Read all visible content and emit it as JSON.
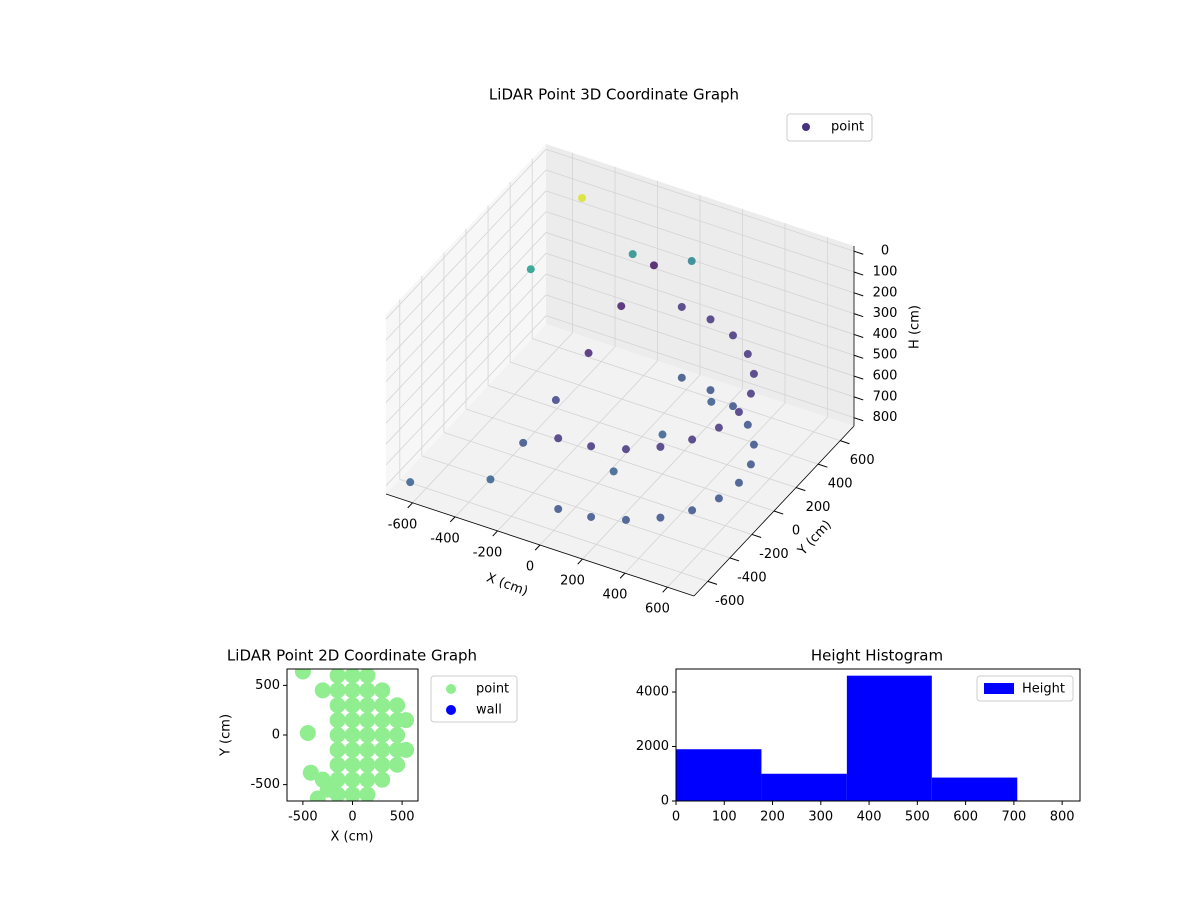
{
  "chart_data": [
    {
      "type": "scatter3d",
      "title": "LiDAR Point 3D Coordinate Graph",
      "xlabel": "X (cm)",
      "ylabel": "Y (cm)",
      "zlabel": "H (cm)",
      "xlim": [
        -725,
        725
      ],
      "ylim": [
        -725,
        725
      ],
      "zlim": [
        -25,
        840
      ],
      "zinvert": true,
      "xticks": [
        -600,
        -400,
        -200,
        0,
        200,
        400,
        600
      ],
      "yticks": [
        -600,
        -400,
        -200,
        0,
        200,
        400,
        600
      ],
      "zticks": [
        0,
        100,
        200,
        300,
        400,
        500,
        600,
        700,
        800
      ],
      "cmap": "viridis",
      "legend": "upper right",
      "grid": true,
      "series": [
        {
          "name": "point",
          "color": "#46327e",
          "x": [
            0,
            145,
            280,
            396,
            485,
            541,
            560,
            541,
            485,
            396,
            280,
            145,
            0,
            0,
            145,
            280,
            396,
            485,
            541,
            560,
            541,
            485,
            396,
            280,
            145,
            0,
            -100,
            -150,
            -200,
            -250,
            -300,
            -350,
            200,
            100,
            300,
            -650,
            -480,
            -550,
            -200,
            0
          ],
          "y": [
            -560,
            -541,
            -485,
            -396,
            -280,
            -145,
            0,
            145,
            280,
            396,
            485,
            541,
            560,
            -560,
            -541,
            -485,
            -396,
            -280,
            -145,
            0,
            145,
            280,
            396,
            485,
            541,
            560,
            500,
            300,
            100,
            -100,
            -300,
            -500,
            0,
            -250,
            250,
            -650,
            580,
            250,
            500,
            650
          ],
          "z": [
            420,
            420,
            420,
            420,
            420,
            420,
            420,
            420,
            420,
            420,
            420,
            420,
            420,
            760,
            760,
            760,
            760,
            760,
            760,
            760,
            760,
            760,
            760,
            760,
            760,
            760,
            220,
            320,
            450,
            580,
            690,
            770,
            650,
            720,
            600,
            800,
            70,
            250,
            200,
            250
          ],
          "c": [
            0.15,
            0.15,
            0.15,
            0.15,
            0.15,
            0.15,
            0.15,
            0.15,
            0.15,
            0.15,
            0.15,
            0.15,
            0.15,
            0.25,
            0.25,
            0.25,
            0.25,
            0.25,
            0.25,
            0.25,
            0.25,
            0.25,
            0.25,
            0.25,
            0.25,
            0.25,
            0.05,
            0.08,
            0.1,
            0.2,
            0.25,
            0.3,
            0.3,
            0.3,
            0.28,
            0.3,
            0.95,
            0.55,
            0.5,
            0.45
          ]
        }
      ]
    },
    {
      "type": "scatter",
      "title": "LiDAR Point 2D Coordinate Graph",
      "xlabel": "X (cm)",
      "ylabel": "Y (cm)",
      "xlim": [
        -660,
        660
      ],
      "ylim": [
        -665,
        665
      ],
      "xticks": [
        -500,
        0,
        500
      ],
      "yticks": [
        -500,
        0,
        500
      ],
      "legend": "outside right",
      "series": [
        {
          "name": "point",
          "color": "#90ee90",
          "x": [
            -150,
            -150,
            -150,
            -150,
            -150,
            -150,
            -150,
            -150,
            -150,
            0,
            0,
            0,
            0,
            0,
            0,
            0,
            0,
            0,
            150,
            150,
            150,
            150,
            150,
            150,
            150,
            150,
            150,
            300,
            300,
            300,
            300,
            300,
            300,
            300,
            450,
            450,
            450,
            450,
            450,
            540,
            540,
            -300,
            -300,
            -420,
            -450,
            -500,
            -350,
            -250
          ],
          "y": [
            -600,
            -450,
            -300,
            -150,
            0,
            150,
            300,
            450,
            600,
            -600,
            -450,
            -300,
            -150,
            0,
            150,
            300,
            450,
            600,
            -600,
            -450,
            -300,
            -150,
            0,
            150,
            300,
            450,
            600,
            -450,
            -300,
            -150,
            0,
            150,
            300,
            450,
            -300,
            -150,
            0,
            150,
            300,
            -150,
            150,
            450,
            -450,
            -380,
            20,
            640,
            -640,
            -550
          ]
        },
        {
          "name": "wall",
          "color": "#0000ff",
          "x": [],
          "y": []
        }
      ]
    },
    {
      "type": "histogram",
      "title": "Height Histogram",
      "bins": [
        0,
        177,
        354,
        530,
        707
      ],
      "counts": [
        1900,
        1000,
        4600,
        860
      ],
      "xlim": [
        0,
        837
      ],
      "ylim": [
        0,
        4845
      ],
      "xticks": [
        0,
        100,
        200,
        300,
        400,
        500,
        600,
        700,
        800
      ],
      "yticks": [
        0,
        2000,
        4000
      ],
      "series_name": "Height",
      "color": "#0000ff",
      "legend": "upper right"
    }
  ]
}
